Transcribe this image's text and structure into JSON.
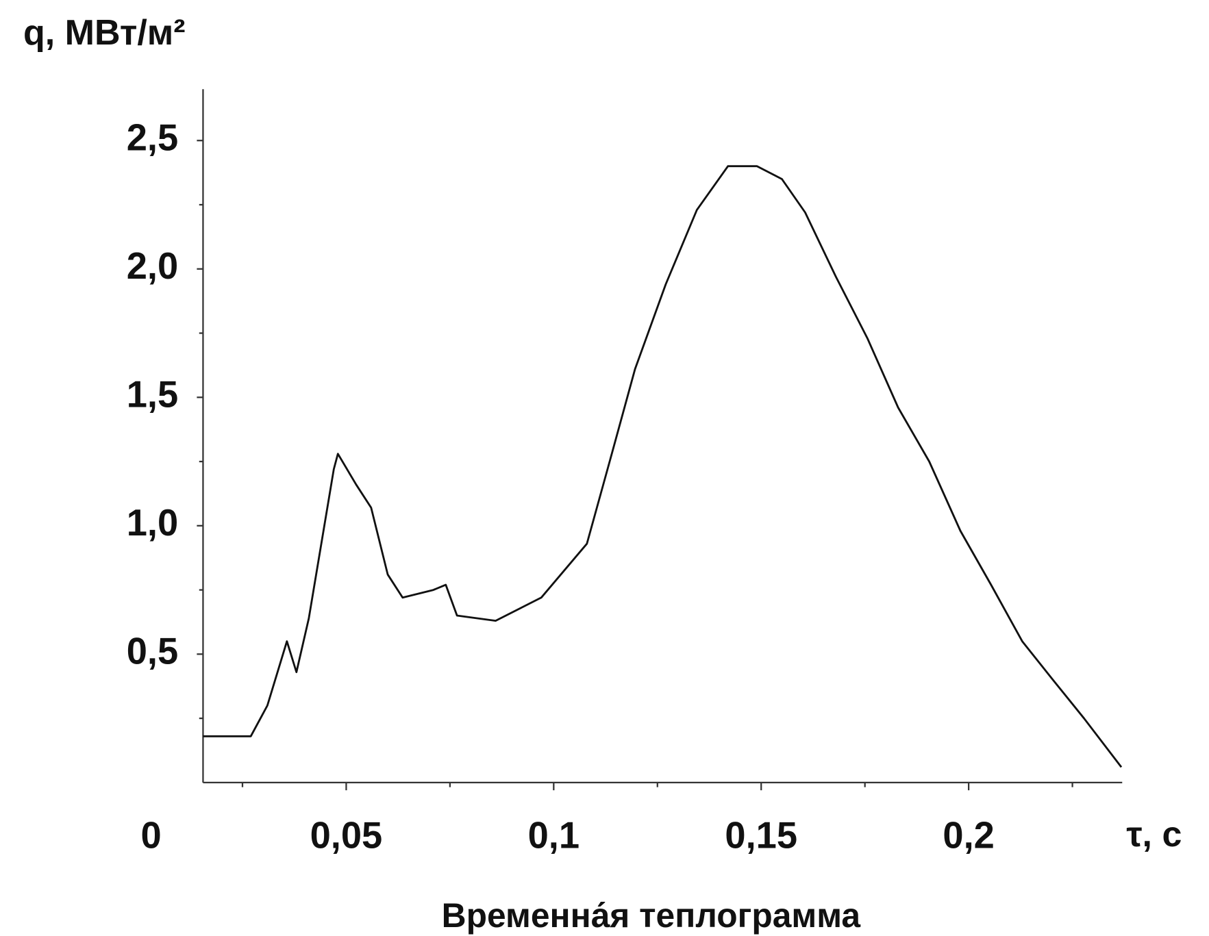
{
  "chart_data": {
    "type": "line",
    "title": "Временна́я теплограмма",
    "y_label": "q, МВт/м²",
    "x_label": "τ, с",
    "series": [
      {
        "color": "#111111",
        "x": [
          0.0155,
          0.027,
          0.031,
          0.0357,
          0.038,
          0.041,
          0.047,
          0.048,
          0.0524,
          0.056,
          0.06,
          0.0636,
          0.071,
          0.074,
          0.0767,
          0.086,
          0.097,
          0.108,
          0.114,
          0.1196,
          0.127,
          0.1345,
          0.142,
          0.149,
          0.155,
          0.1606,
          0.168,
          0.1756,
          0.183,
          0.1905,
          0.198,
          0.2054,
          0.2129,
          0.2203,
          0.2278,
          0.2368
        ],
        "values": [
          0.18,
          0.18,
          0.3,
          0.55,
          0.43,
          0.64,
          1.22,
          1.28,
          1.16,
          1.07,
          0.81,
          0.72,
          0.75,
          0.77,
          0.65,
          0.63,
          0.72,
          0.93,
          1.28,
          1.61,
          1.94,
          2.23,
          2.4,
          2.4,
          2.35,
          2.22,
          1.97,
          1.73,
          1.46,
          1.25,
          0.98,
          0.77,
          0.55,
          0.4,
          0.25,
          0.06
        ]
      }
    ],
    "xlim": [
      0.0155,
      0.237
    ],
    "ylim": [
      0,
      2.7
    ],
    "xticks": [
      0,
      {
        "value": 0.05,
        "label": "0,05"
      },
      {
        "value": 0.1,
        "label": "0,1"
      },
      {
        "value": 0.15,
        "label": "0,15"
      },
      {
        "value": 0.2,
        "label": "0,2"
      }
    ],
    "yticks": [
      {
        "value": 0.5,
        "label": "0,5"
      },
      {
        "value": 1.0,
        "label": "1,0"
      },
      {
        "value": 1.5,
        "label": "1,5"
      },
      {
        "value": 2.0,
        "label": "2,0"
      },
      {
        "value": 2.5,
        "label": "2,5"
      }
    ],
    "x_minor_ticks": [
      0.025,
      0.075,
      0.125,
      0.175,
      0.225
    ],
    "y_minor_ticks": [
      0.25,
      0.75,
      1.25,
      1.75,
      2.25
    ],
    "grid": false
  }
}
